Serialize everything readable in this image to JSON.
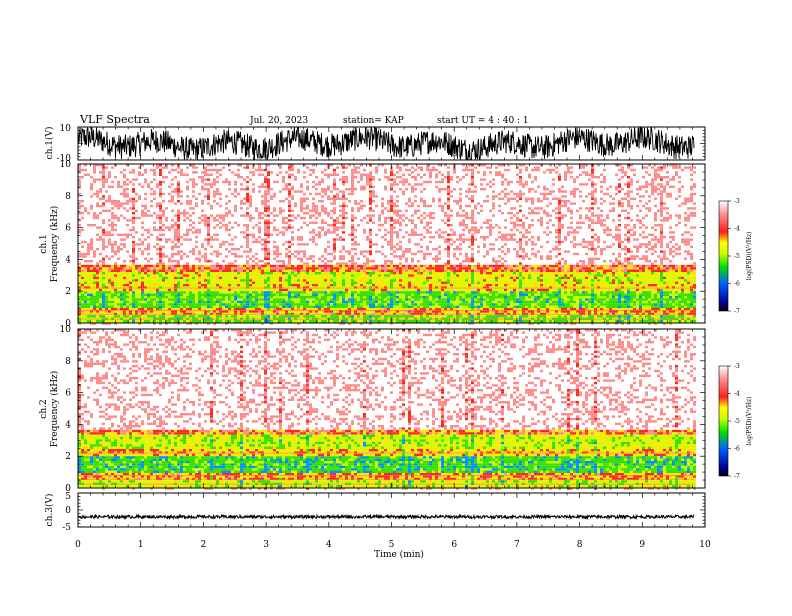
{
  "header": {
    "title": "VLF Spectra",
    "date": "Jul. 20, 2023",
    "station": "station= KAP",
    "start_ut": "start UT = 4 : 40 : 1"
  },
  "chart_data": [
    {
      "type": "line",
      "panel": "ch1-waveform",
      "ylabel": "ch.1(V)",
      "ylim": [
        -10,
        10
      ],
      "yticks": [
        "10",
        "-10"
      ],
      "xlim": [
        0,
        10
      ],
      "color": "#000000"
    },
    {
      "type": "heatmap",
      "panel": "ch1-spectrogram",
      "ylabel": "ch.1\nFrequency (kHz)",
      "ylabel_line1": "ch.1",
      "ylabel_line2": "Frequency (kHz)",
      "ylim": [
        0,
        10
      ],
      "yticks": [
        "0",
        "2",
        "4",
        "6",
        "8",
        "10"
      ],
      "xlim": [
        0,
        10
      ],
      "data_extent_x": [
        0,
        9.83
      ],
      "colorbar": {
        "label": "log(PSD)(V²/Hz)",
        "range": [
          -7,
          -3
        ],
        "ticks": [
          "-3",
          "-4",
          "-5",
          "-6",
          "-7"
        ]
      },
      "bands_khz": [
        {
          "from": 0.0,
          "to": 0.5,
          "level": -4.8
        },
        {
          "from": 0.5,
          "to": 1.0,
          "level": -4.2
        },
        {
          "from": 1.0,
          "to": 2.0,
          "level": -4.9
        },
        {
          "from": 2.0,
          "to": 2.5,
          "level": -4.4
        },
        {
          "from": 2.5,
          "to": 3.2,
          "level": -4.5
        },
        {
          "from": 3.2,
          "to": 3.6,
          "level": -4.0
        },
        {
          "from": 3.6,
          "to": 10.0,
          "level": -3.3
        }
      ]
    },
    {
      "type": "heatmap",
      "panel": "ch2-spectrogram",
      "ylabel": "ch.2\nFrequency (kHz)",
      "ylabel_line1": "ch.2",
      "ylabel_line2": "Frequency (kHz)",
      "ylim": [
        0,
        10
      ],
      "yticks": [
        "0",
        "2",
        "4",
        "6",
        "8",
        "10"
      ],
      "xlim": [
        0,
        10
      ],
      "data_extent_x": [
        0,
        9.83
      ],
      "colorbar": {
        "label": "log(PSD)(V²/Hz)",
        "range": [
          -7,
          -3
        ],
        "ticks": [
          "-3",
          "-4",
          "-5",
          "-6",
          "-7"
        ]
      },
      "bands_khz": [
        {
          "from": 0.0,
          "to": 0.5,
          "level": -4.6
        },
        {
          "from": 0.5,
          "to": 1.0,
          "level": -4.2
        },
        {
          "from": 1.0,
          "to": 2.0,
          "level": -5.0
        },
        {
          "from": 2.0,
          "to": 2.5,
          "level": -4.3
        },
        {
          "from": 2.5,
          "to": 3.3,
          "level": -4.6
        },
        {
          "from": 3.3,
          "to": 3.7,
          "level": -4.0
        },
        {
          "from": 3.7,
          "to": 10.0,
          "level": -3.3
        }
      ]
    },
    {
      "type": "line",
      "panel": "ch3-waveform",
      "ylabel": "ch.3(V)",
      "ylim": [
        -5,
        5
      ],
      "yticks": [
        "5",
        "0",
        "-5"
      ],
      "xlim": [
        0,
        10
      ],
      "level": -2,
      "color": "#000000"
    }
  ],
  "xaxis": {
    "label": "Time (min)",
    "ticks": [
      "0",
      "1",
      "2",
      "3",
      "4",
      "5",
      "6",
      "7",
      "8",
      "9",
      "10"
    ],
    "range": [
      0,
      10
    ]
  }
}
